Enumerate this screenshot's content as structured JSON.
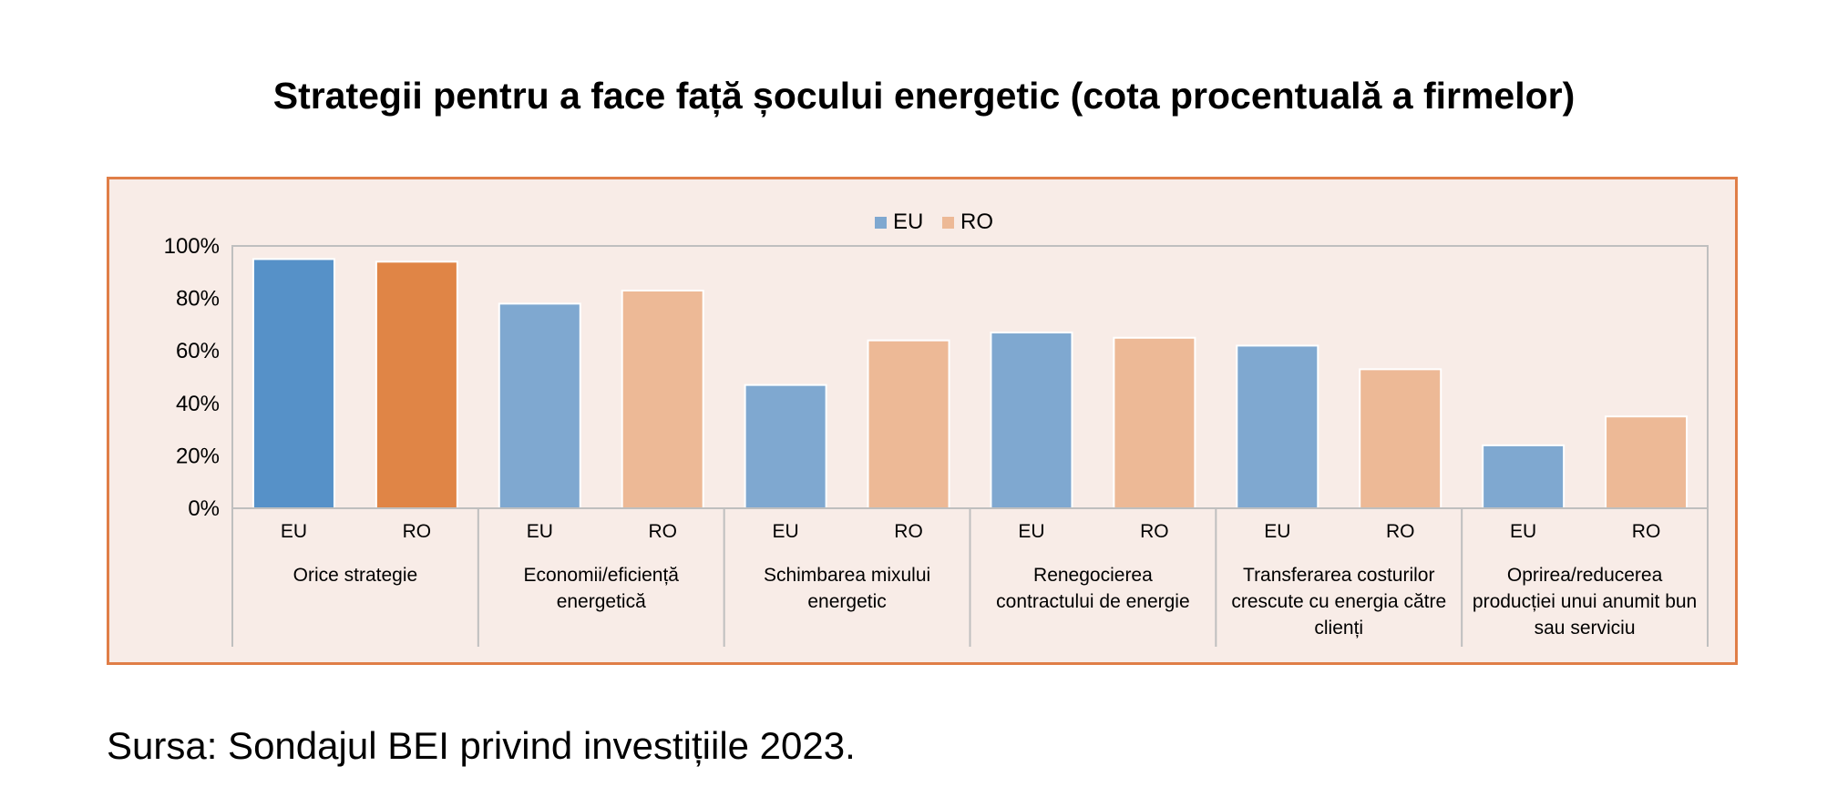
{
  "chart_data": {
    "type": "bar",
    "title": "Strategii pentru a face față șocului energetic (cota procentuală a firmelor)",
    "xlabel": "",
    "ylabel": "",
    "ylim": [
      0,
      100
    ],
    "y_ticks": [
      "0%",
      "20%",
      "40%",
      "60%",
      "80%",
      "100%"
    ],
    "legend_position": "top-center",
    "grid": false,
    "categories": [
      "Orice strategie",
      "Economii/eficiență energetică",
      "Schimbarea mixului energetic",
      "Renegocierea contractului de energie",
      "Transferarea costurilor crescute cu energia către clienți",
      "Oprirea/reducerea producției unui anumit bun sau serviciu"
    ],
    "category_label_lines": [
      [
        "Orice strategie"
      ],
      [
        "Economii/eficiență",
        "energetică"
      ],
      [
        "Schimbarea mixului",
        "energetic"
      ],
      [
        "Renegocierea",
        "contractului de energie"
      ],
      [
        "Transferarea costurilor",
        "crescute cu energia către",
        "clienți"
      ],
      [
        "Oprirea/reducerea",
        "producției unui anumit bun",
        "sau serviciu"
      ]
    ],
    "series": [
      {
        "name": "EU",
        "values": [
          95,
          78,
          47,
          67,
          62,
          24
        ]
      },
      {
        "name": "RO",
        "values": [
          94,
          83,
          64,
          65,
          53,
          35
        ]
      }
    ],
    "colors": {
      "EU": "#7fa8d0",
      "RO": "#edb996",
      "EU_highlight": "#5691c8",
      "RO_highlight": "#e08546",
      "frame_border": "#e07e47",
      "plot_background": "#f8ece7",
      "axis": "#bfbfbf"
    }
  },
  "source": "Sursa: Sondajul BEI privind investițiile 2023."
}
